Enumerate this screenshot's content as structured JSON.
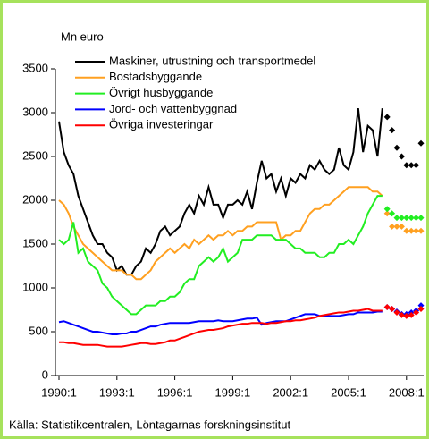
{
  "chart_data": {
    "type": "line",
    "y_label": "Mn euro",
    "source": "Källa: Statistikcentralen, Löntagarnas forskningsinstitut",
    "categories": [
      "1990:1",
      null,
      null,
      null,
      null,
      null,
      null,
      null,
      null,
      null,
      null,
      null,
      "1993:1",
      null,
      null,
      null,
      null,
      null,
      null,
      null,
      null,
      null,
      null,
      null,
      "1996:1",
      null,
      null,
      null,
      null,
      null,
      null,
      null,
      null,
      null,
      null,
      null,
      "1999:1",
      null,
      null,
      null,
      null,
      null,
      null,
      null,
      null,
      null,
      null,
      null,
      "2002:1",
      null,
      null,
      null,
      null,
      null,
      null,
      null,
      null,
      null,
      null,
      null,
      "2005:1",
      null,
      null,
      null,
      null,
      null,
      null,
      null,
      null,
      null,
      null,
      null,
      "2008:1",
      null,
      null,
      null
    ],
    "ylim": [
      0,
      3500
    ],
    "yticks": [
      0,
      500,
      1000,
      1500,
      2000,
      2500,
      3000,
      3500
    ],
    "legend": "top-left",
    "series": [
      {
        "name": "Maskiner, utrustning och transportmedel",
        "color": "#000000",
        "values": [
          2900,
          2550,
          2400,
          2300,
          2050,
          1900,
          1750,
          1600,
          1500,
          1500,
          1400,
          1350,
          1200,
          1250,
          1150,
          1150,
          1250,
          1300,
          1450,
          1400,
          1500,
          1650,
          1700,
          1600,
          1650,
          1700,
          1850,
          1950,
          1850,
          2050,
          1950,
          2150,
          1950,
          1950,
          1800,
          1950,
          1950,
          2000,
          1950,
          2100,
          1900,
          2200,
          2450,
          2250,
          2300,
          2100,
          2250,
          2050,
          2250,
          2200,
          2300,
          2250,
          2400,
          2350,
          2450,
          2350,
          2300,
          2350,
          2600,
          2400,
          2350,
          2550,
          3050,
          2550,
          2850,
          2800,
          2500,
          3050,
          null,
          null,
          null,
          null,
          null,
          null,
          null,
          null
        ]
      },
      {
        "name": "Bostadsbyggande",
        "color": "#ffa020",
        "values": [
          2000,
          1950,
          1850,
          1700,
          1600,
          1500,
          1450,
          1400,
          1350,
          1300,
          1250,
          1200,
          1200,
          1200,
          1150,
          1150,
          1100,
          1100,
          1150,
          1200,
          1300,
          1350,
          1400,
          1450,
          1400,
          1450,
          1500,
          1450,
          1550,
          1500,
          1550,
          1600,
          1550,
          1600,
          1600,
          1650,
          1600,
          1650,
          1650,
          1700,
          1700,
          1750,
          1750,
          1750,
          1750,
          1750,
          1550,
          1600,
          1600,
          1650,
          1650,
          1750,
          1850,
          1900,
          1900,
          1950,
          1950,
          2000,
          2050,
          2100,
          2150,
          2150,
          2150,
          2150,
          2150,
          2100,
          2100,
          2050,
          null,
          null,
          null,
          null,
          null,
          null,
          null,
          null
        ]
      },
      {
        "name": "Övrigt husbyggande",
        "color": "#22ee22",
        "values": [
          1550,
          1500,
          1550,
          1750,
          1400,
          1450,
          1300,
          1250,
          1200,
          1050,
          1000,
          900,
          850,
          800,
          750,
          700,
          700,
          750,
          800,
          800,
          800,
          850,
          850,
          900,
          900,
          950,
          1050,
          1100,
          1100,
          1250,
          1300,
          1350,
          1300,
          1350,
          1450,
          1300,
          1350,
          1400,
          1550,
          1550,
          1550,
          1600,
          1600,
          1600,
          1600,
          1550,
          1550,
          1550,
          1500,
          1450,
          1450,
          1400,
          1400,
          1400,
          1350,
          1350,
          1400,
          1400,
          1500,
          1500,
          1550,
          1500,
          1600,
          1700,
          1850,
          1950,
          2050,
          2050,
          null,
          null,
          null,
          null,
          null,
          null,
          null,
          null
        ]
      },
      {
        "name": "Jord- och vattenbyggnad",
        "color": "#0000ff",
        "values": [
          610,
          620,
          600,
          580,
          560,
          540,
          520,
          500,
          500,
          490,
          480,
          470,
          470,
          480,
          480,
          500,
          500,
          520,
          540,
          560,
          560,
          580,
          590,
          600,
          600,
          600,
          600,
          600,
          610,
          620,
          620,
          620,
          620,
          630,
          620,
          620,
          620,
          630,
          640,
          650,
          650,
          660,
          580,
          600,
          610,
          620,
          620,
          620,
          640,
          660,
          680,
          700,
          700,
          700,
          680,
          680,
          680,
          680,
          680,
          690,
          700,
          700,
          720,
          720,
          720,
          720,
          730,
          730,
          null,
          null,
          null,
          null,
          null,
          null,
          null,
          null
        ]
      },
      {
        "name": "Övriga investeringar",
        "color": "#ff0000",
        "values": [
          380,
          380,
          370,
          370,
          360,
          350,
          350,
          350,
          350,
          340,
          330,
          330,
          330,
          330,
          340,
          350,
          360,
          370,
          370,
          360,
          360,
          370,
          380,
          400,
          400,
          420,
          440,
          460,
          480,
          500,
          510,
          520,
          520,
          530,
          540,
          560,
          570,
          580,
          590,
          590,
          600,
          600,
          600,
          590,
          600,
          600,
          610,
          620,
          620,
          630,
          630,
          640,
          650,
          660,
          680,
          690,
          700,
          710,
          720,
          720,
          730,
          740,
          740,
          750,
          760,
          740,
          740,
          740,
          null,
          null,
          null,
          null,
          null,
          null,
          null,
          null
        ]
      }
    ],
    "forecast": [
      {
        "color": "#000000",
        "values": [
          null,
          null,
          null,
          null,
          null,
          null,
          null,
          null,
          null,
          null,
          null,
          null,
          null,
          null,
          null,
          null,
          null,
          null,
          null,
          null,
          null,
          null,
          null,
          null,
          null,
          null,
          null,
          null,
          null,
          null,
          null,
          null,
          null,
          null,
          null,
          null,
          null,
          null,
          null,
          null,
          null,
          null,
          null,
          null,
          null,
          null,
          null,
          null,
          null,
          null,
          null,
          null,
          null,
          null,
          null,
          null,
          null,
          null,
          null,
          null,
          null,
          null,
          null,
          null,
          null,
          null,
          null,
          null,
          2950,
          2800,
          2600,
          2500,
          2400,
          2400,
          2400,
          2650
        ]
      },
      {
        "color": "#ffa020",
        "values": [
          null,
          null,
          null,
          null,
          null,
          null,
          null,
          null,
          null,
          null,
          null,
          null,
          null,
          null,
          null,
          null,
          null,
          null,
          null,
          null,
          null,
          null,
          null,
          null,
          null,
          null,
          null,
          null,
          null,
          null,
          null,
          null,
          null,
          null,
          null,
          null,
          null,
          null,
          null,
          null,
          null,
          null,
          null,
          null,
          null,
          null,
          null,
          null,
          null,
          null,
          null,
          null,
          null,
          null,
          null,
          null,
          null,
          null,
          null,
          null,
          null,
          null,
          null,
          null,
          null,
          null,
          null,
          null,
          1850,
          1700,
          1700,
          1700,
          1650,
          1650,
          1650,
          1650
        ]
      },
      {
        "color": "#22ee22",
        "values": [
          null,
          null,
          null,
          null,
          null,
          null,
          null,
          null,
          null,
          null,
          null,
          null,
          null,
          null,
          null,
          null,
          null,
          null,
          null,
          null,
          null,
          null,
          null,
          null,
          null,
          null,
          null,
          null,
          null,
          null,
          null,
          null,
          null,
          null,
          null,
          null,
          null,
          null,
          null,
          null,
          null,
          null,
          null,
          null,
          null,
          null,
          null,
          null,
          null,
          null,
          null,
          null,
          null,
          null,
          null,
          null,
          null,
          null,
          null,
          null,
          null,
          null,
          null,
          null,
          null,
          null,
          null,
          null,
          1900,
          1850,
          1800,
          1800,
          1800,
          1800,
          1800,
          1800
        ]
      },
      {
        "color": "#0000ff",
        "values": [
          null,
          null,
          null,
          null,
          null,
          null,
          null,
          null,
          null,
          null,
          null,
          null,
          null,
          null,
          null,
          null,
          null,
          null,
          null,
          null,
          null,
          null,
          null,
          null,
          null,
          null,
          null,
          null,
          null,
          null,
          null,
          null,
          null,
          null,
          null,
          null,
          null,
          null,
          null,
          null,
          null,
          null,
          null,
          null,
          null,
          null,
          null,
          null,
          null,
          null,
          null,
          null,
          null,
          null,
          null,
          null,
          null,
          null,
          null,
          null,
          null,
          null,
          null,
          null,
          null,
          null,
          null,
          null,
          780,
          760,
          730,
          700,
          700,
          720,
          740,
          800
        ]
      },
      {
        "color": "#ff0000",
        "values": [
          null,
          null,
          null,
          null,
          null,
          null,
          null,
          null,
          null,
          null,
          null,
          null,
          null,
          null,
          null,
          null,
          null,
          null,
          null,
          null,
          null,
          null,
          null,
          null,
          null,
          null,
          null,
          null,
          null,
          null,
          null,
          null,
          null,
          null,
          null,
          null,
          null,
          null,
          null,
          null,
          null,
          null,
          null,
          null,
          null,
          null,
          null,
          null,
          null,
          null,
          null,
          null,
          null,
          null,
          null,
          null,
          null,
          null,
          null,
          null,
          null,
          null,
          null,
          null,
          null,
          null,
          null,
          null,
          780,
          760,
          720,
          690,
          680,
          690,
          720,
          760
        ]
      }
    ]
  }
}
